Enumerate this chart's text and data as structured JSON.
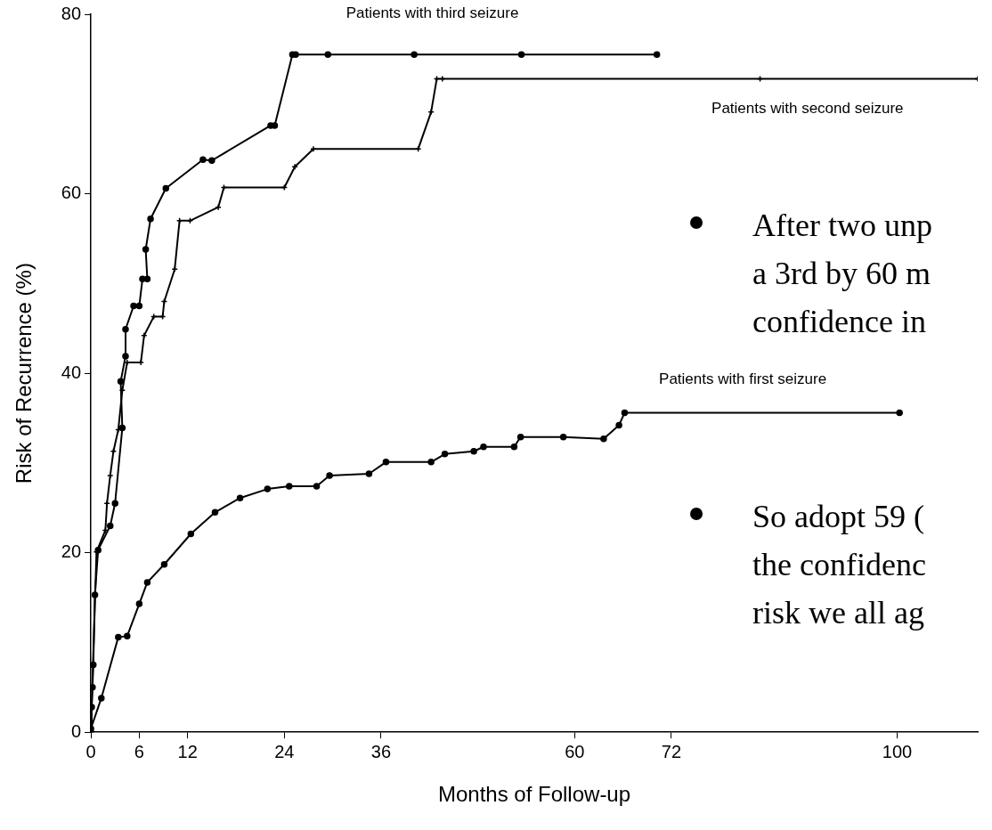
{
  "chart_data": {
    "type": "line",
    "xlabel": "Months of Follow-up",
    "ylabel": "Risk of Recurrence (%)",
    "xlim": [
      0,
      110
    ],
    "xticks": [
      0,
      6,
      12,
      24,
      36,
      60,
      72,
      100
    ],
    "ylim": [
      0,
      80
    ],
    "yticks": [
      0,
      20,
      40,
      60,
      80
    ],
    "grid": false,
    "legend": false,
    "line_style": "solid",
    "series": [
      {
        "name": "Patients with third seizure",
        "color": "#000000",
        "marker": "circle",
        "x": [
          0,
          0.1,
          0.2,
          0.3,
          0.5,
          0.9,
          2.4,
          3.0,
          3.9,
          3.7,
          4.3,
          4.3,
          5.3,
          6.0,
          6.4,
          7.0,
          6.8,
          7.4,
          9.3,
          13.9,
          15.0,
          22.3,
          22.8,
          25.0,
          25.4,
          29.4,
          40.1,
          53.4,
          70.2
        ],
        "values": [
          0,
          2.8,
          5,
          7.5,
          15.3,
          20.3,
          23,
          25.5,
          33.9,
          39.1,
          41.9,
          44.9,
          47.5,
          47.5,
          50.5,
          50.5,
          53.8,
          57.2,
          60.6,
          63.8,
          63.7,
          67.6,
          67.6,
          75.5,
          75.5,
          75.5,
          75.5,
          75.5,
          75.5
        ]
      },
      {
        "name": "Patients with second seizure",
        "color": "#000000",
        "marker": "cross",
        "x": [
          0,
          0.7,
          1.8,
          2.0,
          2.4,
          2.8,
          3.4,
          3.9,
          4.5,
          6.2,
          6.6,
          7.8,
          8.9,
          9.1,
          10.4,
          11.0,
          12.3,
          15.8,
          16.5,
          24.0,
          25.3,
          27.6,
          40.6,
          42.2,
          42.9,
          43.6,
          83,
          110
        ],
        "values": [
          0,
          20.1,
          22.5,
          25.5,
          28.6,
          31.3,
          33.7,
          38.1,
          41.2,
          41.2,
          44.2,
          46.3,
          46.3,
          48,
          51.6,
          57,
          57,
          58.5,
          60.7,
          60.7,
          63,
          65,
          65,
          69.1,
          72.8,
          72.8,
          72.8,
          72.8
        ]
      },
      {
        "name": "Patients with first seizure",
        "color": "#000000",
        "marker": "circle",
        "x": [
          0,
          1.3,
          3.4,
          4.5,
          6.0,
          7.0,
          9.1,
          12.4,
          15.4,
          18.5,
          21.9,
          24.6,
          28.0,
          29.6,
          34.5,
          36.6,
          42.2,
          43.9,
          47.5,
          48.7,
          52.5,
          53.3,
          58.6,
          63.6,
          65.5,
          66.2,
          100.3
        ],
        "values": [
          0.4,
          3.8,
          10.6,
          10.7,
          14.3,
          16.7,
          18.7,
          22.1,
          24.5,
          26.1,
          27.1,
          27.4,
          27.4,
          28.6,
          28.8,
          30.1,
          30.1,
          31,
          31.3,
          31.8,
          31.8,
          32.9,
          32.9,
          32.7,
          34.2,
          35.6,
          35.6
        ]
      }
    ],
    "annotations": [
      "After two unp\na 3rd by 60 m\nconfidence in",
      "So adopt 59 (\nthe confidenc\nrisk we all ag"
    ]
  }
}
